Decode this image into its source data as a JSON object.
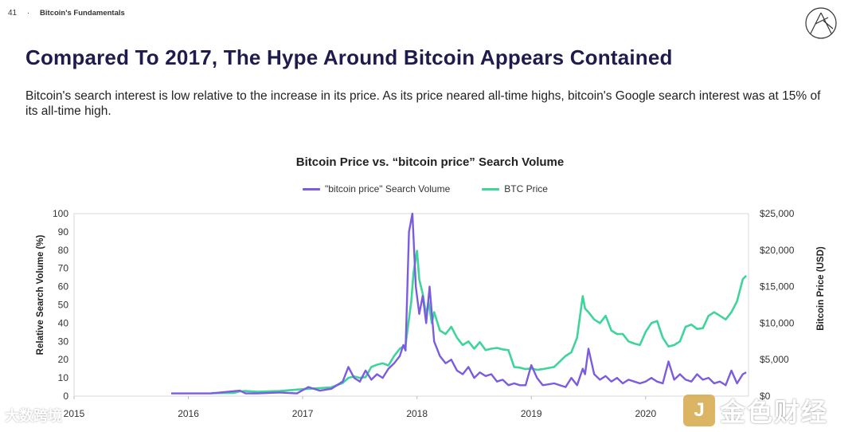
{
  "header": {
    "page_number": "41",
    "separator": "·",
    "section": "Bitcoin's Fundamentals"
  },
  "title": "Compared To 2017, The Hype Around Bitcoin Appears Contained",
  "subtitle": "Bitcoin's search interest is low relative to the increase in its price. As its price neared all-time highs, bitcoin's Google search interest was at 15% of its all-time high.",
  "watermarks": {
    "left": "大数跨境",
    "right_badge": "J",
    "right_text": "金色财经"
  },
  "colors": {
    "search": "#7b5ce0",
    "price": "#3ed49a",
    "title": "#1f1c4d",
    "badge": "#d6a94a"
  },
  "chart_data": {
    "type": "line",
    "title": "Bitcoin Price vs. “bitcoin price” Search Volume",
    "ylabel": "Relative Search Volume (%)",
    "y2label": "Bitcoin Price (USD)",
    "ylim": [
      0,
      100
    ],
    "y2lim": [
      0,
      25000
    ],
    "xlim": [
      2015,
      2020.9
    ],
    "x_ticks": [
      "2015",
      "2016",
      "2017",
      "2018",
      "2019",
      "2020"
    ],
    "x_tick_values": [
      2015,
      2016,
      2017,
      2018,
      2019,
      2020
    ],
    "y_ticks": [
      "0",
      "10",
      "20",
      "30",
      "40",
      "50",
      "60",
      "70",
      "80",
      "90",
      "100"
    ],
    "y2_ticks": [
      "$0",
      "$5,000",
      "$10,000",
      "$15,000",
      "$20,000",
      "$25,000"
    ],
    "series": [
      {
        "name": "\"bitcoin price\" Search Volume",
        "color": "#7b5ce0",
        "x": [
          2015.85,
          2016.0,
          2016.2,
          2016.45,
          2016.5,
          2016.6,
          2016.8,
          2016.95,
          2017.05,
          2017.15,
          2017.25,
          2017.35,
          2017.4,
          2017.45,
          2017.5,
          2017.55,
          2017.6,
          2017.65,
          2017.7,
          2017.75,
          2017.8,
          2017.85,
          2017.88,
          2017.9,
          2017.93,
          2017.96,
          2017.99,
          2018.02,
          2018.05,
          2018.08,
          2018.11,
          2018.15,
          2018.2,
          2018.25,
          2018.3,
          2018.35,
          2018.4,
          2018.45,
          2018.5,
          2018.55,
          2018.6,
          2018.65,
          2018.7,
          2018.75,
          2018.8,
          2018.85,
          2018.9,
          2018.95,
          2019.0,
          2019.05,
          2019.1,
          2019.2,
          2019.3,
          2019.35,
          2019.4,
          2019.45,
          2019.47,
          2019.5,
          2019.55,
          2019.6,
          2019.65,
          2019.7,
          2019.75,
          2019.8,
          2019.85,
          2019.9,
          2019.95,
          2020.0,
          2020.05,
          2020.1,
          2020.15,
          2020.2,
          2020.25,
          2020.3,
          2020.35,
          2020.4,
          2020.45,
          2020.5,
          2020.55,
          2020.6,
          2020.65,
          2020.7,
          2020.75,
          2020.8,
          2020.85,
          2020.88
        ],
        "values": [
          1.5,
          1.5,
          1.5,
          3,
          1.5,
          1.5,
          2,
          1.5,
          5,
          3,
          4,
          8,
          16,
          10,
          8,
          14,
          9,
          12,
          10,
          15,
          18,
          22,
          28,
          25,
          90,
          100,
          60,
          45,
          55,
          40,
          60,
          30,
          22,
          18,
          20,
          14,
          12,
          16,
          10,
          13,
          11,
          12,
          8,
          9,
          6,
          7,
          6,
          6,
          17,
          10,
          6,
          7,
          5,
          10,
          6,
          15,
          12,
          26,
          12,
          9,
          11,
          8,
          10,
          7,
          9,
          8,
          7,
          8,
          10,
          8,
          7,
          19,
          9,
          12,
          9,
          8,
          12,
          9,
          10,
          7,
          8,
          6,
          14,
          7,
          12,
          13
        ]
      },
      {
        "name": "BTC Price",
        "color": "#3ed49a",
        "x": [
          2016.2,
          2016.4,
          2016.45,
          2016.5,
          2016.6,
          2016.8,
          2016.95,
          2017.05,
          2017.15,
          2017.25,
          2017.35,
          2017.4,
          2017.45,
          2017.5,
          2017.55,
          2017.6,
          2017.65,
          2017.7,
          2017.75,
          2017.8,
          2017.85,
          2017.9,
          2017.95,
          2017.97,
          2018.0,
          2018.02,
          2018.05,
          2018.08,
          2018.1,
          2018.13,
          2018.15,
          2018.2,
          2018.25,
          2018.3,
          2018.35,
          2018.4,
          2018.45,
          2018.5,
          2018.55,
          2018.6,
          2018.65,
          2018.7,
          2018.75,
          2018.8,
          2018.85,
          2018.9,
          2018.95,
          2019.0,
          2019.05,
          2019.1,
          2019.2,
          2019.3,
          2019.35,
          2019.4,
          2019.45,
          2019.47,
          2019.5,
          2019.55,
          2019.6,
          2019.65,
          2019.7,
          2019.75,
          2019.8,
          2019.85,
          2019.9,
          2019.95,
          2020.0,
          2020.05,
          2020.1,
          2020.15,
          2020.2,
          2020.25,
          2020.3,
          2020.35,
          2020.4,
          2020.45,
          2020.5,
          2020.55,
          2020.6,
          2020.65,
          2020.7,
          2020.75,
          2020.8,
          2020.85,
          2020.88
        ],
        "values": [
          420,
          450,
          650,
          700,
          600,
          700,
          900,
          1000,
          1100,
          1200,
          1800,
          2500,
          2700,
          2500,
          2600,
          4000,
          4300,
          4500,
          4200,
          5500,
          6500,
          7000,
          13000,
          17000,
          19900,
          16000,
          14000,
          11000,
          13000,
          10000,
          11500,
          9000,
          8500,
          9500,
          8000,
          7000,
          7500,
          6500,
          7400,
          6300,
          6500,
          6600,
          6400,
          6300,
          4000,
          3900,
          3700,
          3800,
          3600,
          3700,
          4000,
          5500,
          6000,
          8000,
          13700,
          12000,
          11500,
          10500,
          10000,
          11000,
          9000,
          8500,
          8500,
          7500,
          7200,
          7000,
          8800,
          10000,
          10300,
          8000,
          6800,
          7000,
          7500,
          9500,
          9800,
          9200,
          9300,
          11000,
          11500,
          11000,
          10500,
          11500,
          13000,
          16000,
          16500
        ]
      }
    ]
  }
}
